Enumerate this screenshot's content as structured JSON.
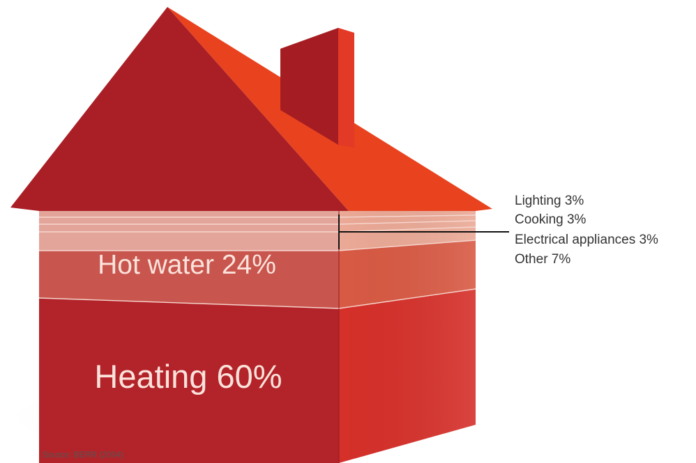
{
  "chart_data": {
    "type": "bar",
    "categories": [
      "Heating",
      "Hot water",
      "Other",
      "Electrical appliances",
      "Cooking",
      "Lighting"
    ],
    "values": [
      60,
      24,
      7,
      3,
      3,
      3
    ],
    "unit": "%",
    "source": "Source: BERR (2004)",
    "labels": {
      "heating": "Heating 60%",
      "hot_water": "Hot water 24%",
      "lighting": "Lighting 3%",
      "cooking": "Cooking 3%",
      "electrical_appliances": "Electrical appliances 3%",
      "other": "Other 7%"
    },
    "colors": {
      "roof_left": "#a91f25",
      "roof_right": "#e9421f",
      "chimney_front": "#a51d22",
      "chimney_side": "#e23a26",
      "heating_front": "#b3242a",
      "heating_side": "#d6302a",
      "hot_water_front": "#c8564e",
      "hot_water_side": "#d85a44",
      "minor_front": "#e3a49a",
      "minor_side": "#eba996",
      "divider": "#f6d8d0"
    }
  }
}
